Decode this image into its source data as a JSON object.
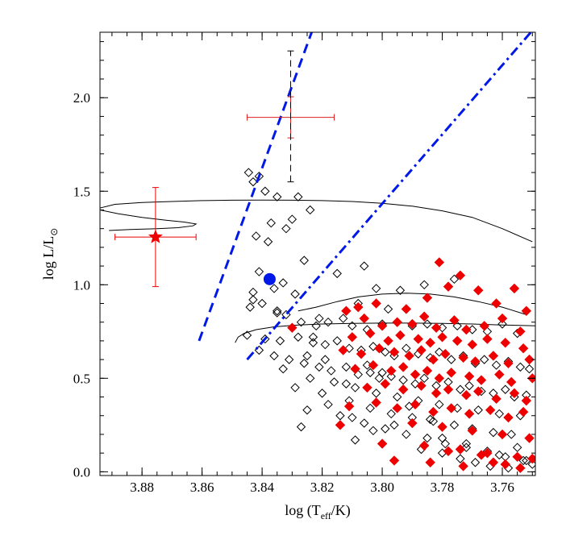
{
  "chart_data": {
    "type": "scatter",
    "title": "",
    "xlabel_main": "log (T",
    "xlabel_sub": "eff",
    "xlabel_tail": "/K)",
    "ylabel_main": "log L/L",
    "ylabel_symbol": "⊙",
    "xlim": [
      3.894,
      3.749
    ],
    "ylim": [
      -0.02,
      2.35
    ],
    "xticks": [
      3.88,
      3.86,
      3.84,
      3.82,
      3.8,
      3.78,
      3.76
    ],
    "xtick_labels": [
      "3.88",
      "3.86",
      "3.84",
      "3.82",
      "3.80",
      "3.78",
      "3.76"
    ],
    "yticks": [
      0.0,
      0.5,
      1.0,
      1.5,
      2.0
    ],
    "ytick_labels": [
      "0.0",
      "0.5",
      "1.0",
      "1.5",
      "2.0"
    ],
    "grid": false,
    "colors": {
      "open_diamond": "#000000",
      "red_diamond": "#ee0000",
      "error_red": "#e02020",
      "blue": "#0018e8",
      "track": "#000000"
    },
    "lines": [
      {
        "name": "dashed blue boundary",
        "style": "dashed",
        "color": "#0018e8",
        "x": [
          3.861,
          3.8235
        ],
        "y": [
          0.7,
          2.35
        ]
      },
      {
        "name": "dash-dot blue boundary",
        "style": "dashdot",
        "color": "#0018e8",
        "x": [
          3.845,
          3.7505
        ],
        "y": [
          0.6,
          2.35
        ]
      }
    ],
    "tracks": [
      {
        "name": "upper track",
        "x": [
          3.894,
          3.889,
          3.88,
          3.87,
          3.86,
          3.85,
          3.84,
          3.83,
          3.82,
          3.81,
          3.8,
          3.79,
          3.78,
          3.77,
          3.76,
          3.75
        ],
        "y": [
          1.41,
          1.43,
          1.44,
          1.445,
          1.45,
          1.452,
          1.453,
          1.452,
          1.45,
          1.445,
          1.435,
          1.42,
          1.395,
          1.36,
          1.3,
          1.23
        ]
      },
      {
        "name": "upper track loop",
        "x": [
          3.894,
          3.888,
          3.88,
          3.872,
          3.866,
          3.862,
          3.863,
          3.868,
          3.875,
          3.884,
          3.891
        ],
        "y": [
          1.4,
          1.38,
          1.36,
          1.345,
          1.335,
          1.325,
          1.315,
          1.305,
          1.3,
          1.295,
          1.29
        ]
      },
      {
        "name": "middle track",
        "x": [
          3.828,
          3.822,
          3.815,
          3.808,
          3.8,
          3.792,
          3.784,
          3.776,
          3.768,
          3.76,
          3.752
        ],
        "y": [
          0.86,
          0.88,
          0.91,
          0.935,
          0.95,
          0.955,
          0.95,
          0.935,
          0.91,
          0.88,
          0.84
        ]
      },
      {
        "name": "lower track",
        "x": [
          3.849,
          3.848,
          3.846,
          3.842,
          3.836,
          3.828,
          3.82,
          3.81,
          3.8,
          3.79,
          3.78,
          3.77,
          3.76,
          3.749
        ],
        "y": [
          0.69,
          0.72,
          0.74,
          0.76,
          0.775,
          0.785,
          0.79,
          0.793,
          0.795,
          0.795,
          0.793,
          0.79,
          0.785,
          0.78
        ]
      }
    ],
    "special_points": [
      {
        "name": "red star",
        "marker": "star",
        "color": "#ee0000",
        "x": 3.8755,
        "y": 1.255,
        "xerr": 0.0135,
        "yerr": 0.265
      },
      {
        "name": "red cross",
        "marker": "none",
        "color": "#e02020",
        "x": 3.8305,
        "y": 1.895,
        "xerr": 0.0145,
        "yerr": 0.11
      },
      {
        "name": "black dashed upper limit",
        "marker": "none",
        "color": "#000000",
        "x": 3.8305,
        "y0": 1.55,
        "y1": 2.25
      },
      {
        "name": "blue circle",
        "marker": "circle",
        "color": "#0018e8",
        "x": 3.8375,
        "y": 1.03
      }
    ],
    "series": [
      {
        "name": "open diamonds",
        "marker": "diamond-open",
        "x": [
          3.8445,
          3.843,
          3.841,
          3.839,
          3.835,
          3.837,
          3.828,
          3.824,
          3.83,
          3.832,
          3.842,
          3.838,
          3.826,
          3.806,
          3.815,
          3.802,
          3.794,
          3.786,
          3.776,
          3.841,
          3.838,
          3.833,
          3.836,
          3.829,
          3.843,
          3.84,
          3.844,
          3.835,
          3.832,
          3.827,
          3.822,
          3.818,
          3.813,
          3.81,
          3.805,
          3.8,
          3.795,
          3.79,
          3.785,
          3.78,
          3.775,
          3.77,
          3.765,
          3.76,
          3.755,
          3.845,
          3.839,
          3.834,
          3.828,
          3.823,
          3.819,
          3.815,
          3.811,
          3.807,
          3.803,
          3.799,
          3.796,
          3.792,
          3.788,
          3.784,
          3.781,
          3.777,
          3.773,
          3.769,
          3.766,
          3.762,
          3.758,
          3.754,
          3.751,
          3.841,
          3.836,
          3.831,
          3.826,
          3.821,
          3.817,
          3.812,
          3.808,
          3.804,
          3.801,
          3.797,
          3.793,
          3.789,
          3.786,
          3.782,
          3.778,
          3.774,
          3.771,
          3.767,
          3.763,
          3.759,
          3.756,
          3.752,
          3.833,
          3.824,
          3.816,
          3.809,
          3.802,
          3.795,
          3.788,
          3.781,
          3.775,
          3.768,
          3.761,
          3.754,
          3.82,
          3.811,
          3.804,
          3.797,
          3.79,
          3.783,
          3.776,
          3.77,
          3.763,
          3.757,
          3.814,
          3.806,
          3.799,
          3.792,
          3.785,
          3.779,
          3.772,
          3.765,
          3.759,
          3.753,
          3.825,
          3.829,
          3.843,
          3.821,
          3.808,
          3.798,
          3.818,
          3.825,
          3.827,
          3.81,
          3.835,
          3.823,
          3.819,
          3.805,
          3.8,
          3.812,
          3.791,
          3.784,
          3.796,
          3.803,
          3.809,
          3.787,
          3.78,
          3.774,
          3.769,
          3.764,
          3.758,
          3.752,
          3.78,
          3.772,
          3.761,
          3.755,
          3.75
        ],
        "y": [
          1.6,
          1.55,
          1.58,
          1.5,
          1.47,
          1.33,
          1.47,
          1.4,
          1.35,
          1.3,
          1.26,
          1.23,
          1.13,
          1.1,
          1.06,
          0.98,
          0.97,
          1.0,
          1.03,
          1.07,
          1.03,
          1.01,
          0.98,
          0.95,
          0.92,
          0.9,
          0.88,
          0.85,
          0.84,
          0.8,
          0.78,
          0.8,
          0.82,
          0.78,
          0.76,
          0.79,
          0.8,
          0.78,
          0.79,
          0.77,
          0.78,
          0.76,
          0.75,
          0.79,
          0.74,
          0.73,
          0.71,
          0.7,
          0.72,
          0.69,
          0.68,
          0.7,
          0.66,
          0.65,
          0.67,
          0.64,
          0.62,
          0.66,
          0.63,
          0.61,
          0.64,
          0.6,
          0.62,
          0.58,
          0.6,
          0.57,
          0.59,
          0.56,
          0.55,
          0.65,
          0.62,
          0.6,
          0.58,
          0.56,
          0.54,
          0.56,
          0.52,
          0.53,
          0.5,
          0.51,
          0.49,
          0.47,
          0.5,
          0.46,
          0.48,
          0.44,
          0.46,
          0.43,
          0.42,
          0.44,
          0.4,
          0.41,
          0.55,
          0.5,
          0.48,
          0.45,
          0.42,
          0.4,
          0.38,
          0.36,
          0.34,
          0.33,
          0.31,
          0.3,
          0.42,
          0.38,
          0.34,
          0.31,
          0.29,
          0.27,
          0.25,
          0.23,
          0.21,
          0.2,
          0.3,
          0.26,
          0.23,
          0.2,
          0.18,
          0.15,
          0.13,
          0.11,
          0.08,
          0.06,
          0.62,
          0.45,
          0.96,
          0.82,
          0.9,
          0.87,
          0.36,
          0.33,
          0.24,
          0.29,
          0.86,
          0.72,
          0.6,
          0.57,
          0.53,
          0.47,
          0.35,
          0.28,
          0.25,
          0.22,
          0.17,
          0.12,
          0.1,
          0.07,
          0.05,
          0.03,
          0.02,
          0.06,
          0.18,
          0.15,
          0.09,
          0.13,
          0.04
        ]
      },
      {
        "name": "red diamonds",
        "marker": "diamond-filled",
        "x": [
          3.83,
          3.812,
          3.808,
          3.802,
          3.792,
          3.785,
          3.781,
          3.774,
          3.778,
          3.768,
          3.762,
          3.756,
          3.752,
          3.806,
          3.8,
          3.795,
          3.79,
          3.786,
          3.782,
          3.776,
          3.772,
          3.766,
          3.76,
          3.754,
          3.81,
          3.804,
          3.798,
          3.794,
          3.788,
          3.784,
          3.78,
          3.775,
          3.77,
          3.765,
          3.759,
          3.753,
          3.813,
          3.807,
          3.801,
          3.796,
          3.791,
          3.787,
          3.783,
          3.779,
          3.773,
          3.769,
          3.763,
          3.758,
          3.751,
          3.809,
          3.803,
          3.797,
          3.793,
          3.789,
          3.785,
          3.781,
          3.777,
          3.771,
          3.767,
          3.761,
          3.757,
          3.75,
          3.805,
          3.799,
          3.793,
          3.787,
          3.782,
          3.778,
          3.772,
          3.768,
          3.762,
          3.756,
          3.752,
          3.811,
          3.802,
          3.795,
          3.789,
          3.783,
          3.777,
          3.771,
          3.764,
          3.758,
          3.753,
          3.79,
          3.78,
          3.77,
          3.76,
          3.751,
          3.814,
          3.8,
          3.786,
          3.774,
          3.765,
          3.755,
          3.796,
          3.784,
          3.773,
          3.763,
          3.754,
          3.778,
          3.767,
          3.759,
          3.75
        ],
        "y": [
          0.77,
          0.86,
          0.88,
          0.9,
          0.87,
          0.93,
          1.12,
          1.05,
          0.99,
          0.97,
          0.9,
          0.98,
          0.86,
          0.82,
          0.78,
          0.8,
          0.79,
          0.83,
          0.77,
          0.81,
          0.76,
          0.78,
          0.82,
          0.75,
          0.72,
          0.74,
          0.7,
          0.73,
          0.71,
          0.69,
          0.72,
          0.7,
          0.68,
          0.71,
          0.69,
          0.66,
          0.65,
          0.63,
          0.66,
          0.64,
          0.62,
          0.65,
          0.6,
          0.63,
          0.61,
          0.59,
          0.62,
          0.58,
          0.6,
          0.55,
          0.57,
          0.54,
          0.56,
          0.52,
          0.54,
          0.5,
          0.53,
          0.51,
          0.49,
          0.52,
          0.48,
          0.5,
          0.45,
          0.47,
          0.44,
          0.46,
          0.42,
          0.44,
          0.41,
          0.43,
          0.39,
          0.42,
          0.38,
          0.35,
          0.37,
          0.34,
          0.36,
          0.32,
          0.34,
          0.31,
          0.33,
          0.29,
          0.32,
          0.26,
          0.24,
          0.22,
          0.2,
          0.18,
          0.25,
          0.15,
          0.14,
          0.12,
          0.1,
          0.08,
          0.06,
          0.05,
          0.03,
          0.05,
          0.02,
          0.11,
          0.09,
          0.04,
          0.07
        ]
      }
    ]
  }
}
